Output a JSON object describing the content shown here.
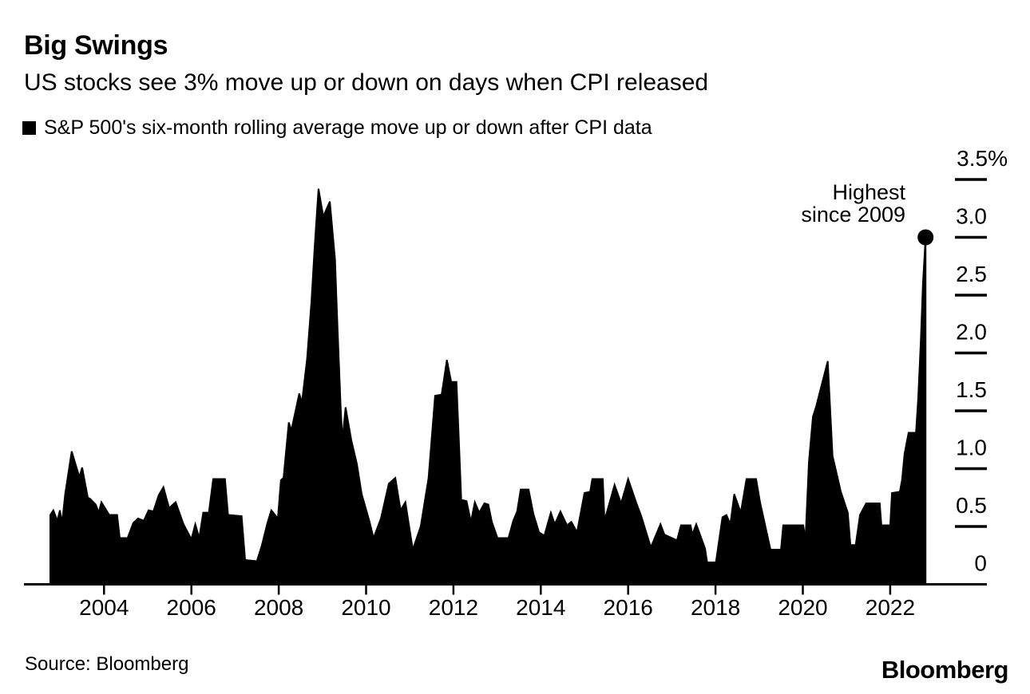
{
  "header": {
    "title": "Big Swings",
    "subtitle": "US stocks see 3% move up or down on days when CPI released"
  },
  "legend": {
    "label": "S&P 500's six-month rolling average move up or down after CPI data"
  },
  "footer": {
    "source": "Source: Bloomberg",
    "brand": "Bloomberg"
  },
  "colors": {
    "series_fill": "#000000",
    "text": "#000000",
    "background": "#ffffff"
  },
  "chart_data": {
    "type": "area",
    "title": "Big Swings",
    "subtitle": "US stocks see 3% move up or down on days when CPI released",
    "series_name": "S&P 500's six-month rolling average move up or down after CPI data",
    "unit": "%",
    "xlim": [
      2002.7,
      2023.1
    ],
    "ylim": [
      0,
      3.5
    ],
    "grid": false,
    "legend_position": "top-left",
    "y_axis_side": "right",
    "x_ticks": [
      {
        "v": 2004,
        "label": "2004"
      },
      {
        "v": 2006,
        "label": "2006"
      },
      {
        "v": 2008,
        "label": "2008"
      },
      {
        "v": 2010,
        "label": "2010"
      },
      {
        "v": 2012,
        "label": "2012"
      },
      {
        "v": 2014,
        "label": "2014"
      },
      {
        "v": 2016,
        "label": "2016"
      },
      {
        "v": 2018,
        "label": "2018"
      },
      {
        "v": 2020,
        "label": "2020"
      },
      {
        "v": 2022,
        "label": "2022"
      }
    ],
    "y_ticks": [
      {
        "v": 0,
        "label": "0"
      },
      {
        "v": 0.5,
        "label": "0.5"
      },
      {
        "v": 1.0,
        "label": "1.0"
      },
      {
        "v": 1.5,
        "label": "1.5"
      },
      {
        "v": 2.0,
        "label": "2.0"
      },
      {
        "v": 2.5,
        "label": "2.5"
      },
      {
        "v": 3.0,
        "label": "3.0"
      },
      {
        "v": 3.5,
        "label": "3.5%"
      }
    ],
    "annotation": {
      "lines": [
        "Highest",
        "since 2009"
      ],
      "target_year": 2022.81,
      "target_value": 3.0
    },
    "end_dot": {
      "year": 2022.81,
      "value": 3.0
    },
    "points": [
      [
        2002.77,
        0.6
      ],
      [
        2002.84,
        0.64
      ],
      [
        2002.93,
        0.55
      ],
      [
        2002.99,
        0.64
      ],
      [
        2003.04,
        0.53
      ],
      [
        2003.11,
        0.78
      ],
      [
        2003.26,
        1.15
      ],
      [
        2003.41,
        0.96
      ],
      [
        2003.44,
        0.93
      ],
      [
        2003.5,
        1.01
      ],
      [
        2003.63,
        0.75
      ],
      [
        2003.68,
        0.74
      ],
      [
        2003.81,
        0.69
      ],
      [
        2003.88,
        0.62
      ],
      [
        2003.94,
        0.71
      ],
      [
        2004.12,
        0.6
      ],
      [
        2004.3,
        0.6
      ],
      [
        2004.36,
        0.4
      ],
      [
        2004.54,
        0.4
      ],
      [
        2004.67,
        0.53
      ],
      [
        2004.78,
        0.57
      ],
      [
        2004.91,
        0.55
      ],
      [
        2005.02,
        0.64
      ],
      [
        2005.13,
        0.63
      ],
      [
        2005.25,
        0.77
      ],
      [
        2005.36,
        0.84
      ],
      [
        2005.49,
        0.66
      ],
      [
        2005.64,
        0.71
      ],
      [
        2005.82,
        0.52
      ],
      [
        2006.0,
        0.39
      ],
      [
        2006.09,
        0.52
      ],
      [
        2006.18,
        0.4
      ],
      [
        2006.27,
        0.62
      ],
      [
        2006.4,
        0.62
      ],
      [
        2006.5,
        0.91
      ],
      [
        2006.77,
        0.91
      ],
      [
        2006.84,
        0.6
      ],
      [
        2007.15,
        0.59
      ],
      [
        2007.23,
        0.21
      ],
      [
        2007.5,
        0.2
      ],
      [
        2007.61,
        0.33
      ],
      [
        2007.74,
        0.53
      ],
      [
        2007.83,
        0.64
      ],
      [
        2007.98,
        0.57
      ],
      [
        2008.05,
        0.9
      ],
      [
        2008.11,
        0.92
      ],
      [
        2008.23,
        1.4
      ],
      [
        2008.29,
        1.33
      ],
      [
        2008.47,
        1.65
      ],
      [
        2008.53,
        1.57
      ],
      [
        2008.65,
        1.95
      ],
      [
        2008.75,
        2.45
      ],
      [
        2008.82,
        2.9
      ],
      [
        2008.91,
        3.42
      ],
      [
        2009.02,
        3.18
      ],
      [
        2009.17,
        3.31
      ],
      [
        2009.29,
        2.81
      ],
      [
        2009.35,
        2.19
      ],
      [
        2009.42,
        1.51
      ],
      [
        2009.46,
        1.25
      ],
      [
        2009.53,
        1.53
      ],
      [
        2009.66,
        1.25
      ],
      [
        2009.79,
        1.04
      ],
      [
        2009.9,
        0.78
      ],
      [
        2010.08,
        0.54
      ],
      [
        2010.17,
        0.4
      ],
      [
        2010.34,
        0.57
      ],
      [
        2010.52,
        0.87
      ],
      [
        2010.67,
        0.92
      ],
      [
        2010.79,
        0.64
      ],
      [
        2010.9,
        0.71
      ],
      [
        2011.07,
        0.3
      ],
      [
        2011.25,
        0.5
      ],
      [
        2011.43,
        0.92
      ],
      [
        2011.58,
        1.63
      ],
      [
        2011.73,
        1.64
      ],
      [
        2011.85,
        1.94
      ],
      [
        2011.95,
        1.75
      ],
      [
        2012.07,
        1.75
      ],
      [
        2012.13,
        1.2
      ],
      [
        2012.18,
        0.73
      ],
      [
        2012.3,
        0.72
      ],
      [
        2012.4,
        0.54
      ],
      [
        2012.49,
        0.71
      ],
      [
        2012.59,
        0.62
      ],
      [
        2012.71,
        0.7
      ],
      [
        2012.8,
        0.69
      ],
      [
        2012.88,
        0.54
      ],
      [
        2013.01,
        0.4
      ],
      [
        2013.26,
        0.4
      ],
      [
        2013.37,
        0.55
      ],
      [
        2013.46,
        0.63
      ],
      [
        2013.54,
        0.82
      ],
      [
        2013.72,
        0.82
      ],
      [
        2013.83,
        0.61
      ],
      [
        2013.96,
        0.45
      ],
      [
        2014.08,
        0.42
      ],
      [
        2014.23,
        0.62
      ],
      [
        2014.32,
        0.52
      ],
      [
        2014.45,
        0.63
      ],
      [
        2014.6,
        0.51
      ],
      [
        2014.7,
        0.54
      ],
      [
        2014.83,
        0.45
      ],
      [
        2015.0,
        0.79
      ],
      [
        2015.13,
        0.8
      ],
      [
        2015.18,
        0.91
      ],
      [
        2015.42,
        0.91
      ],
      [
        2015.46,
        0.55
      ],
      [
        2015.69,
        0.86
      ],
      [
        2015.84,
        0.7
      ],
      [
        2016.0,
        0.91
      ],
      [
        2016.19,
        0.7
      ],
      [
        2016.3,
        0.59
      ],
      [
        2016.52,
        0.32
      ],
      [
        2016.74,
        0.52
      ],
      [
        2016.83,
        0.43
      ],
      [
        2017.12,
        0.38
      ],
      [
        2017.21,
        0.51
      ],
      [
        2017.43,
        0.51
      ],
      [
        2017.47,
        0.43
      ],
      [
        2017.56,
        0.52
      ],
      [
        2017.76,
        0.31
      ],
      [
        2017.81,
        0.19
      ],
      [
        2018.01,
        0.19
      ],
      [
        2018.16,
        0.58
      ],
      [
        2018.25,
        0.6
      ],
      [
        2018.34,
        0.52
      ],
      [
        2018.43,
        0.78
      ],
      [
        2018.58,
        0.62
      ],
      [
        2018.71,
        0.91
      ],
      [
        2018.93,
        0.91
      ],
      [
        2019.02,
        0.71
      ],
      [
        2019.26,
        0.3
      ],
      [
        2019.5,
        0.3
      ],
      [
        2019.55,
        0.51
      ],
      [
        2020.01,
        0.51
      ],
      [
        2020.06,
        0.39
      ],
      [
        2020.14,
        1.06
      ],
      [
        2020.23,
        1.45
      ],
      [
        2020.3,
        1.53
      ],
      [
        2020.57,
        1.93
      ],
      [
        2020.68,
        1.11
      ],
      [
        2020.87,
        0.8
      ],
      [
        2021.03,
        0.62
      ],
      [
        2021.09,
        0.34
      ],
      [
        2021.21,
        0.34
      ],
      [
        2021.31,
        0.6
      ],
      [
        2021.45,
        0.7
      ],
      [
        2021.76,
        0.7
      ],
      [
        2021.8,
        0.51
      ],
      [
        2022.0,
        0.51
      ],
      [
        2022.04,
        0.79
      ],
      [
        2022.22,
        0.8
      ],
      [
        2022.27,
        0.9
      ],
      [
        2022.33,
        1.13
      ],
      [
        2022.42,
        1.31
      ],
      [
        2022.59,
        1.31
      ],
      [
        2022.64,
        1.6
      ],
      [
        2022.7,
        2.1
      ],
      [
        2022.75,
        2.6
      ],
      [
        2022.81,
        3.0
      ]
    ]
  }
}
